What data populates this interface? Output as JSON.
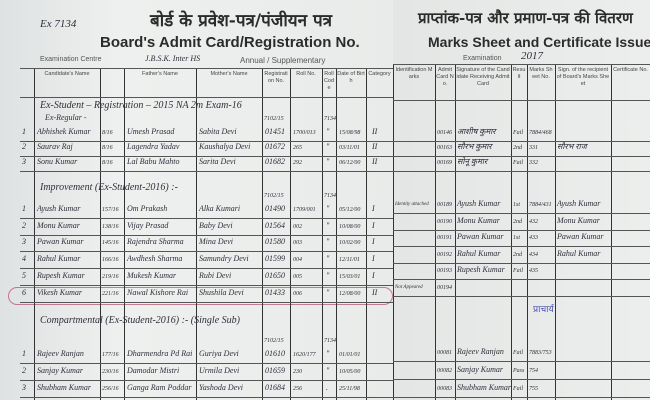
{
  "left_sheet": {
    "title_hindi": "बोर्ड के प्रवेश-पत्र/पंजीयन पत्र",
    "title_english": "Board's Admit Card/Registration No.",
    "examination_centre_label": "Examination Centre",
    "examination_centre_value": "J.B.S.K. Inter HS",
    "exam_type": "Annual / Supplementary",
    "margin_note": "Ex 7134",
    "columns": [
      "Candidate's Name",
      "Father's Name",
      "Mother's Name",
      "Registration No.",
      "Roll No.",
      "Roll Code",
      "Date of Birth",
      "Category"
    ],
    "sections": [
      {
        "heading": "Ex-Student – Registration – 2015 NA 2m Exam-16",
        "subheading": "Ex-Regular -",
        "code": "7102/15",
        "code2": "7134",
        "rows": [
          {
            "sno": "1",
            "name": "Abhishek Kumar",
            "frac": "8/16",
            "father": "Umesh Prasad",
            "mother": "Sabita Devi",
            "reg": "01451",
            "roll": "1700/013",
            "code": "\"",
            "dob": "15/08/98",
            "div": "II"
          },
          {
            "sno": "2",
            "name": "Saurav Raj",
            "frac": "8/16",
            "father": "Lagendra Yadav",
            "mother": "Kaushalya Devi",
            "reg": "01672",
            "roll": "265",
            "code": "\"",
            "dob": "03/11/01",
            "div": "II"
          },
          {
            "sno": "3",
            "name": "Sonu Kumar",
            "frac": "8/16",
            "father": "Lal Babu Mahto",
            "mother": "Sarita Devi",
            "reg": "01682",
            "roll": "292",
            "code": "\"",
            "dob": "06/12/00",
            "div": "II"
          }
        ]
      },
      {
        "heading": "Improvement (Ex-Student-2016) :-",
        "subheading": "",
        "code": "7102/15",
        "code2": "7134",
        "rows": [
          {
            "sno": "1",
            "name": "Ayush Kumar",
            "frac": "157/16",
            "father": "Om Prakash",
            "mother": "Alka Kumari",
            "reg": "01490",
            "roll": "1709/001",
            "code": "\"",
            "dob": "05/12/00",
            "div": "I"
          },
          {
            "sno": "2",
            "name": "Monu Kumar",
            "frac": "138/16",
            "father": "Vijay Prasad",
            "mother": "Baby Devi",
            "reg": "01564",
            "roll": "002",
            "code": "\"",
            "dob": "10/08/00",
            "div": "I"
          },
          {
            "sno": "3",
            "name": "Pawan Kumar",
            "frac": "145/16",
            "father": "Rajendra Sharma",
            "mother": "Mina Devi",
            "reg": "01580",
            "roll": "003",
            "code": "\"",
            "dob": "10/02/00",
            "div": "I"
          },
          {
            "sno": "4",
            "name": "Rahul Kumar",
            "frac": "166/16",
            "father": "Awdhesh Sharma",
            "mother": "Samundry Devi",
            "reg": "01599",
            "roll": "004",
            "code": "\"",
            "dob": "12/11/01",
            "div": "I"
          },
          {
            "sno": "5",
            "name": "Rupesh Kumar",
            "frac": "219/16",
            "father": "Mukesh Kumar",
            "mother": "Rubi Devi",
            "reg": "01650",
            "roll": "005",
            "code": "\"",
            "dob": "15/03/01",
            "div": "I"
          },
          {
            "sno": "6",
            "name": "Vikesh Kumar",
            "frac": "221/16",
            "father": "Nawal Kishore Rai",
            "mother": "Shushila Devi",
            "reg": "01433",
            "roll": "006",
            "code": "\"",
            "dob": "12/08/00",
            "div": "II"
          }
        ]
      },
      {
        "heading": "Compartmental (Ex-Student-2016) :- (Single Sub)",
        "subheading": "",
        "code": "7102/15",
        "code2": "7134",
        "rows": [
          {
            "sno": "1",
            "name": "Rajeev Ranjan",
            "frac": "177/16",
            "father": "Dharmendra Pd Rai",
            "mother": "Guriya Devi",
            "reg": "01610",
            "roll": "1620/177",
            "code": "\"",
            "dob": "01/01/01",
            "div": ""
          },
          {
            "sno": "2",
            "name": "Sanjay Kumar",
            "frac": "230/16",
            "father": "Damodar Mistri",
            "mother": "Urmila Devi",
            "reg": "01659",
            "roll": "230",
            "code": "\"",
            "dob": "10/05/00",
            "div": ""
          },
          {
            "sno": "3",
            "name": "Shubham Kumar",
            "frac": "256/16",
            "father": "Ganga Ram Poddar",
            "mother": "Yashoda Devi",
            "reg": "01684",
            "roll": "256",
            "code": ".",
            "dob": "25/11/98",
            "div": ""
          }
        ]
      }
    ]
  },
  "right_sheet": {
    "title_hindi": "प्राप्तांक-पत्र और प्रमाण-पत्र की वितरण",
    "title_english": "Marks Sheet and Certificate Issue Re",
    "examination_label": "Examination",
    "examination_year": "2017",
    "columns": [
      "Identification Marks",
      "Admit Card No.",
      "Signature of the Candidate Receiving Admit Card",
      "Result",
      "Marks Sheet No.",
      "Sign. of the recipient of Board's Marks Sheet",
      "Certificate No."
    ],
    "sections": [
      {
        "rows": [
          {
            "remark": "",
            "card": "00146",
            "sign": "आशीष कुमार",
            "result": "Fail",
            "sheet": "7884/468",
            "recip": ""
          },
          {
            "remark": "",
            "card": "00163",
            "sign": "सौरभ कुमार",
            "result": "2nd",
            "sheet": "331",
            "recip": "सौरभ राज"
          },
          {
            "remark": "",
            "card": "00169",
            "sign": "सोनू कुमार",
            "result": "Fail",
            "sheet": "332",
            "recip": ""
          }
        ]
      },
      {
        "rows": [
          {
            "remark": "Identity attached",
            "card": "00189",
            "sign": "Ayush Kumar",
            "result": "1st",
            "sheet": "7884/431",
            "recip": "Ayush Kumar"
          },
          {
            "remark": "",
            "card": "00190",
            "sign": "Monu Kumar",
            "result": "2nd",
            "sheet": "432",
            "recip": "Monu Kumar"
          },
          {
            "remark": "",
            "card": "00191",
            "sign": "Pawan Kumar",
            "result": "1st",
            "sheet": "433",
            "recip": "Pawan Kumar"
          },
          {
            "remark": "",
            "card": "00192",
            "sign": "Rahul Kumar",
            "result": "2nd",
            "sheet": "434",
            "recip": "Rahul Kumar"
          },
          {
            "remark": "",
            "card": "00193",
            "sign": "Rupesh Kumar",
            "result": "Fail",
            "sheet": "435",
            "recip": ""
          },
          {
            "remark": "Not Appeared",
            "card": "00194",
            "sign": "",
            "result": "",
            "sheet": "",
            "recip": ""
          }
        ]
      },
      {
        "rows": [
          {
            "remark": "",
            "card": "00081",
            "sign": "Rajeev Ranjan",
            "result": "Fail",
            "sheet": "7883/753",
            "recip": ""
          },
          {
            "remark": "",
            "card": "00082",
            "sign": "Sanjay Kumar",
            "result": "Pass",
            "sheet": "754",
            "recip": ""
          },
          {
            "remark": "",
            "card": "00083",
            "sign": "Shubham Kumar",
            "result": "Fail",
            "sheet": "755",
            "recip": ""
          }
        ]
      }
    ],
    "stamp_text": "प्राचार्य"
  },
  "colors": {
    "paper": "#eceeed",
    "ink": "#2d2f3a",
    "circle": "#b04a6b",
    "stamp": "#4b52a8"
  }
}
